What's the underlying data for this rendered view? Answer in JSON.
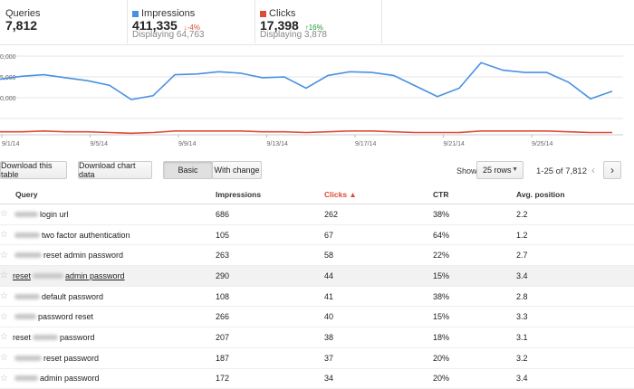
{
  "stats": {
    "queries": {
      "label": "Queries",
      "value": "7,812"
    },
    "impressions": {
      "label": "Impressions",
      "value": "411,335",
      "change": "-4%",
      "change_arrow": "↓",
      "displaying": "Displaying 64,763",
      "color": "#4a90e2"
    },
    "clicks": {
      "label": "Clicks",
      "value": "17,398",
      "change": "16%",
      "change_arrow": "↑",
      "displaying": "Displaying 3,878",
      "color": "#dd4b39"
    }
  },
  "chart_data": {
    "type": "line",
    "x_ticks": [
      "9/1/14",
      "9/5/14",
      "9/9/14",
      "9/13/14",
      "9/17/14",
      "9/21/14",
      "9/25/14"
    ],
    "y_ticks": [
      "0,000",
      "5,000",
      "0,000"
    ],
    "grid": true,
    "series": [
      {
        "name": "Impressions",
        "color": "#4a90e2",
        "values": [
          0.74,
          0.78,
          0.8,
          0.76,
          0.72,
          0.66,
          0.47,
          0.52,
          0.8,
          0.81,
          0.84,
          0.82,
          0.76,
          0.77,
          0.62,
          0.79,
          0.84,
          0.83,
          0.79,
          0.65,
          0.51,
          0.62,
          0.96,
          0.86,
          0.83,
          0.83,
          0.7,
          0.48,
          0.58
        ]
      },
      {
        "name": "Clicks",
        "color": "#dd4b39",
        "values": [
          0.04,
          0.04,
          0.05,
          0.04,
          0.04,
          0.03,
          0.02,
          0.03,
          0.05,
          0.05,
          0.05,
          0.05,
          0.04,
          0.04,
          0.03,
          0.04,
          0.05,
          0.05,
          0.04,
          0.03,
          0.03,
          0.03,
          0.05,
          0.05,
          0.05,
          0.05,
          0.04,
          0.03,
          0.03
        ]
      }
    ]
  },
  "toolbar": {
    "download_table": "Download this table",
    "download_chart": "Download chart data",
    "basic": "Basic",
    "with_change": "With change",
    "show_label": "Show",
    "rows_select": "25 rows",
    "pagination": "1-25 of 7,812",
    "prev": "‹",
    "next": "›"
  },
  "table": {
    "headers": {
      "query": "Query",
      "impressions": "Impressions",
      "clicks": "Clicks ▲",
      "ctr": "CTR",
      "avg_position": "Avg. position"
    },
    "rows": [
      {
        "pre": "",
        "query": "login url",
        "impressions": "686",
        "clicks": "262",
        "ctr": "38%",
        "avg_position": "2.2"
      },
      {
        "pre": "",
        "query": "two factor authentication",
        "impressions": "105",
        "clicks": "67",
        "ctr": "64%",
        "avg_position": "1.2"
      },
      {
        "pre": "",
        "query": "reset admin password",
        "impressions": "263",
        "clicks": "58",
        "ctr": "22%",
        "avg_position": "2.7"
      },
      {
        "pre": "reset",
        "query": "admin password",
        "impressions": "290",
        "clicks": "44",
        "ctr": "15%",
        "avg_position": "3.4"
      },
      {
        "pre": "",
        "query": "default password",
        "impressions": "108",
        "clicks": "41",
        "ctr": "38%",
        "avg_position": "2.8"
      },
      {
        "pre": "",
        "query": "password reset",
        "impressions": "266",
        "clicks": "40",
        "ctr": "15%",
        "avg_position": "3.3"
      },
      {
        "pre": "reset",
        "query": "password",
        "impressions": "207",
        "clicks": "38",
        "ctr": "18%",
        "avg_position": "3.1"
      },
      {
        "pre": "",
        "query": "reset password",
        "impressions": "187",
        "clicks": "37",
        "ctr": "20%",
        "avg_position": "3.2"
      },
      {
        "pre": "",
        "query": "admin password",
        "impressions": "172",
        "clicks": "34",
        "ctr": "20%",
        "avg_position": "3.4"
      }
    ]
  }
}
